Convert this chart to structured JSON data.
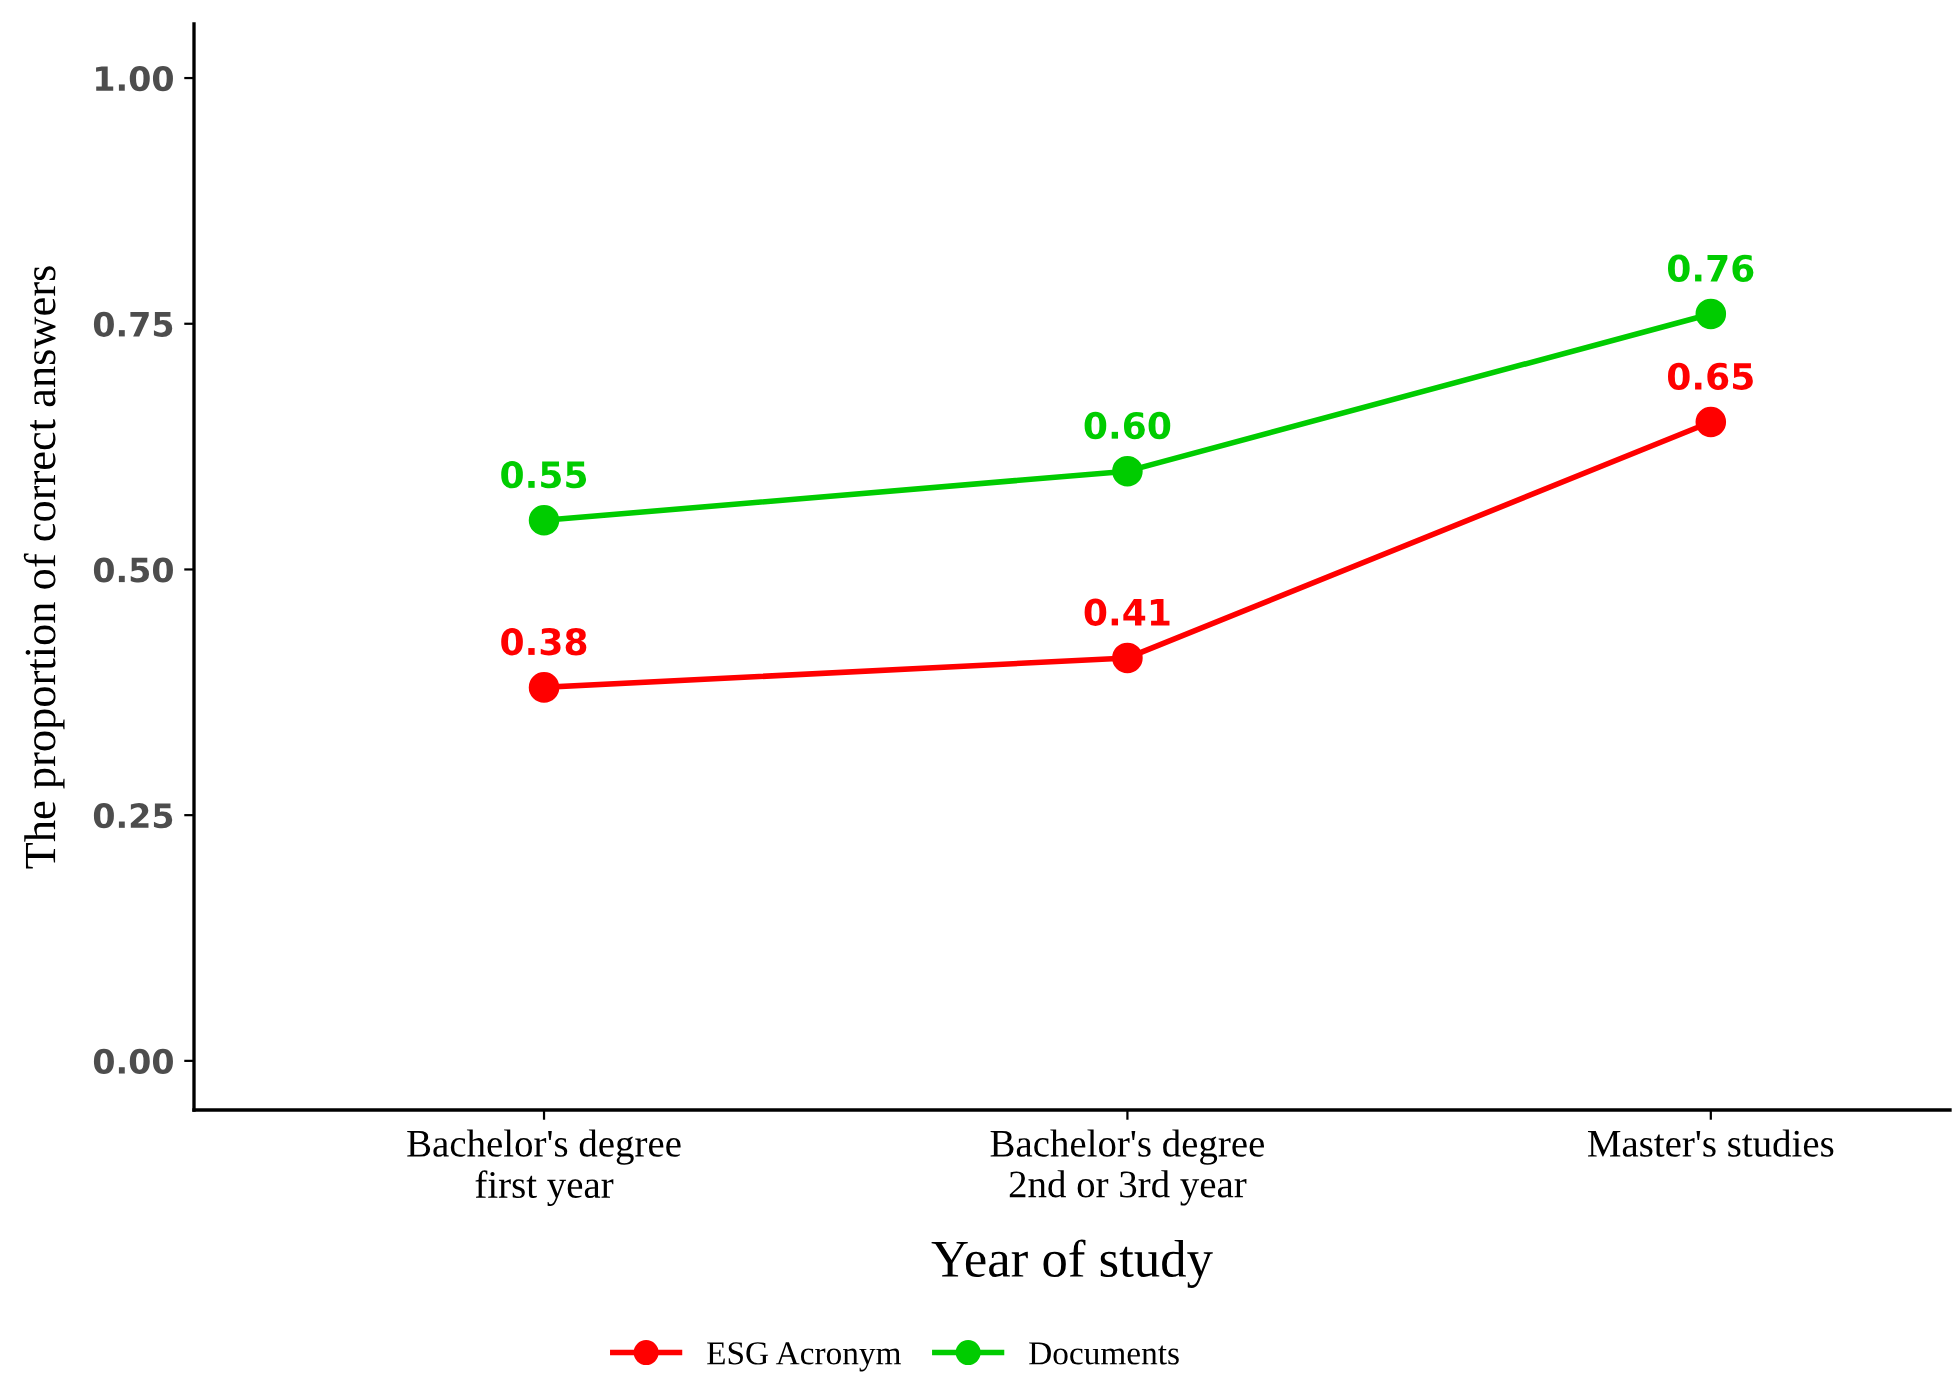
{
  "chart_data": {
    "type": "line",
    "xlabel": "Year of study",
    "ylabel": "The proportion of correct answers",
    "categories": [
      "Bachelor's degree\nfirst year",
      "Bachelor's degree\n2nd or 3rd year",
      "Master's studies"
    ],
    "series": [
      {
        "name": "ESG Acronym",
        "color": "#ff0000",
        "values": [
          0.38,
          0.41,
          0.65
        ],
        "value_labels": [
          "0.38",
          "0.41",
          "0.65"
        ]
      },
      {
        "name": "Documents",
        "color": "#00cc00",
        "values": [
          0.55,
          0.6,
          0.76
        ],
        "value_labels": [
          "0.55",
          "0.60",
          "0.76"
        ]
      }
    ],
    "ylim": [
      -0.05,
      1.055
    ],
    "yticks": [
      {
        "value": 0,
        "label": "0.00"
      },
      {
        "value": 0.25,
        "label": "0.25"
      },
      {
        "value": 0.5,
        "label": "0.50"
      },
      {
        "value": 0.75,
        "label": "0.75"
      },
      {
        "value": 1,
        "label": "1.00"
      }
    ],
    "grid": false,
    "legend": "bottom",
    "marker": "circle",
    "line_style": "solid"
  }
}
